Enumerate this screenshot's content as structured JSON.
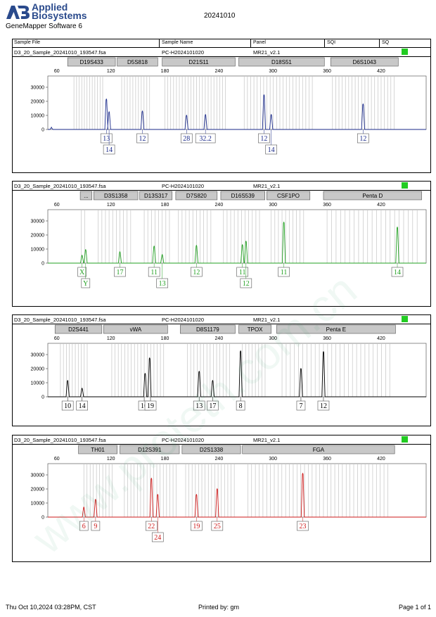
{
  "header": {
    "brand_line1": "Applied",
    "brand_line2": "Biosystems",
    "software": "GeneMapper Software 6",
    "date": "20241010"
  },
  "columns": {
    "sample_file": "Sample File",
    "sample_name": "Sample Name",
    "panel": "Panel",
    "sqi": "SQI",
    "sq": "SQ"
  },
  "footer": {
    "printed_at": "Thu Oct 10,2024 03:28PM, CST",
    "printed_by": "Printed by: gm",
    "page": "Page 1 of 1"
  },
  "watermark": "www.proteth.com.cn",
  "chart_data": [
    {
      "type": "line",
      "sample_file": "D3_20_Sample_20241010_193547.fsa",
      "sample_name": "PC-H2024101020",
      "panel_name": "MR21_v2.1",
      "color": "#1a2a8a",
      "xticks": [
        60,
        120,
        180,
        240,
        300,
        360,
        420
      ],
      "yticks": [
        0,
        10000,
        20000,
        30000
      ],
      "xlim": [
        50,
        470
      ],
      "ylim": [
        0,
        38000
      ],
      "markers": [
        {
          "name": "D19S433",
          "range": [
            72,
            125
          ]
        },
        {
          "name": "D5S818",
          "range": [
            127,
            172
          ]
        },
        {
          "name": "D21S11",
          "range": [
            177,
            258
          ]
        },
        {
          "name": "D18S51",
          "range": [
            262,
            357
          ]
        },
        {
          "name": "D6S1043",
          "range": [
            364,
            439
          ]
        }
      ],
      "bins": [
        {
          "range": [
            79,
            111
          ],
          "step": 2.9
        },
        {
          "range": [
            132,
            166
          ],
          "step": 3.1
        },
        {
          "range": [
            180,
            250
          ],
          "step": 3.2
        },
        {
          "range": [
            268,
            345
          ],
          "step": 3.6
        },
        {
          "range": [
            366,
            435
          ],
          "step": 3.6
        }
      ],
      "peaks": [
        {
          "x": 54,
          "y": 1500
        },
        {
          "x": 115,
          "y": 21500
        },
        {
          "x": 118,
          "y": 12500
        },
        {
          "x": 155,
          "y": 13000
        },
        {
          "x": 204,
          "y": 10000
        },
        {
          "x": 225,
          "y": 10500
        },
        {
          "x": 290,
          "y": 24500
        },
        {
          "x": 298,
          "y": 10500
        },
        {
          "x": 400,
          "y": 18000
        }
      ],
      "alleles": [
        {
          "label": "13",
          "x": 115,
          "row": 1
        },
        {
          "label": "14",
          "x": 118,
          "row": 2
        },
        {
          "label": "12",
          "x": 155,
          "row": 1
        },
        {
          "label": "28",
          "x": 204,
          "row": 1
        },
        {
          "label": "32.2",
          "x": 225,
          "row": 1
        },
        {
          "label": "12",
          "x": 290,
          "row": 1
        },
        {
          "label": "14",
          "x": 298,
          "row": 2
        },
        {
          "label": "12",
          "x": 400,
          "row": 1
        }
      ]
    },
    {
      "type": "line",
      "sample_file": "D3_20_Sample_20241010_193547.fsa",
      "sample_name": "PC-H2024101020",
      "panel_name": "MR21_v2.1",
      "color": "#22a022",
      "xticks": [
        60,
        120,
        180,
        240,
        300,
        360,
        420
      ],
      "yticks": [
        0,
        10000,
        20000,
        30000
      ],
      "xlim": [
        50,
        470
      ],
      "ylim": [
        0,
        38000
      ],
      "markers": [
        {
          "name": "...",
          "range": [
            86,
            99
          ]
        },
        {
          "name": "D3S1358",
          "range": [
            101,
            150
          ]
        },
        {
          "name": "D13S317",
          "range": [
            152,
            188
          ]
        },
        {
          "name": "D7S820",
          "range": [
            192,
            238
          ]
        },
        {
          "name": "D16S539",
          "range": [
            242,
            291
          ]
        },
        {
          "name": "CSF1PO",
          "range": [
            293,
            341
          ]
        },
        {
          "name": "Penta D",
          "range": [
            356,
            465
          ]
        }
      ],
      "bins": [
        {
          "range": [
            87,
            93
          ],
          "step": 4
        },
        {
          "range": [
            106,
            145
          ],
          "step": 4
        },
        {
          "range": [
            157,
            185
          ],
          "step": 4
        },
        {
          "range": [
            195,
            233
          ],
          "step": 4
        },
        {
          "range": [
            245,
            288
          ],
          "step": 4
        },
        {
          "range": [
            298,
            337
          ],
          "step": 4
        },
        {
          "range": [
            360,
            460
          ],
          "step": 5
        }
      ],
      "peaks": [
        {
          "x": 88,
          "y": 5500
        },
        {
          "x": 92,
          "y": 9500
        },
        {
          "x": 130,
          "y": 8000
        },
        {
          "x": 168,
          "y": 12000
        },
        {
          "x": 177,
          "y": 6000
        },
        {
          "x": 215,
          "y": 12500
        },
        {
          "x": 266,
          "y": 13000
        },
        {
          "x": 270,
          "y": 15500
        },
        {
          "x": 312,
          "y": 29000
        },
        {
          "x": 438,
          "y": 25500
        }
      ],
      "alleles": [
        {
          "label": "X",
          "x": 88,
          "row": 1
        },
        {
          "label": "Y",
          "x": 92,
          "row": 2
        },
        {
          "label": "17",
          "x": 130,
          "row": 1
        },
        {
          "label": "11",
          "x": 168,
          "row": 1
        },
        {
          "label": "13",
          "x": 177,
          "row": 2
        },
        {
          "label": "12",
          "x": 215,
          "row": 1
        },
        {
          "label": "11",
          "x": 266,
          "row": 1
        },
        {
          "label": "12",
          "x": 270,
          "row": 2
        },
        {
          "label": "11",
          "x": 312,
          "row": 1
        },
        {
          "label": "14",
          "x": 438,
          "row": 1
        }
      ]
    },
    {
      "type": "line",
      "sample_file": "D3_20_Sample_20241010_193547.fsa",
      "sample_name": "PC-H2024101020",
      "panel_name": "MR21_v2.1",
      "color": "#000000",
      "xticks": [
        60,
        120,
        180,
        240,
        300,
        360,
        420
      ],
      "yticks": [
        0,
        10000,
        20000,
        30000
      ],
      "xlim": [
        50,
        470
      ],
      "ylim": [
        0,
        38000
      ],
      "markers": [
        {
          "name": "D2S441",
          "range": [
            58,
            110
          ]
        },
        {
          "name": "vWA",
          "range": [
            112,
            183
          ]
        },
        {
          "name": "D8S1179",
          "range": [
            197,
            258
          ]
        },
        {
          "name": "TPOX",
          "range": [
            262,
            298
          ]
        },
        {
          "name": "Penta E",
          "range": [
            304,
            436
          ]
        }
      ],
      "bins": [
        {
          "range": [
            64,
            96
          ],
          "step": 3.3
        },
        {
          "range": [
            121,
            179
          ],
          "step": 3.6
        },
        {
          "range": [
            205,
            252
          ],
          "step": 3.6
        },
        {
          "range": [
            266,
            292
          ],
          "step": 3.6
        },
        {
          "range": [
            310,
            432
          ],
          "step": 4.6
        }
      ],
      "peaks": [
        {
          "x": 72,
          "y": 11500
        },
        {
          "x": 88,
          "y": 6000
        },
        {
          "x": 158,
          "y": 16500
        },
        {
          "x": 163,
          "y": 27500
        },
        {
          "x": 218,
          "y": 18000
        },
        {
          "x": 233,
          "y": 11500
        },
        {
          "x": 264,
          "y": 32500
        },
        {
          "x": 331,
          "y": 20000
        },
        {
          "x": 356,
          "y": 32000
        }
      ],
      "alleles": [
        {
          "label": "10",
          "x": 72,
          "row": 1
        },
        {
          "label": "14",
          "x": 88,
          "row": 1
        },
        {
          "label": "16",
          "x": 157,
          "row": 1
        },
        {
          "label": "19",
          "x": 164,
          "row": 1
        },
        {
          "label": "13",
          "x": 218,
          "row": 1
        },
        {
          "label": "17",
          "x": 233,
          "row": 1
        },
        {
          "label": "8",
          "x": 264,
          "row": 1
        },
        {
          "label": "7",
          "x": 331,
          "row": 1
        },
        {
          "label": "12",
          "x": 356,
          "row": 1
        }
      ]
    },
    {
      "type": "line",
      "sample_file": "D3_20_Sample_20241010_193547.fsa",
      "sample_name": "PC-H2024101020",
      "panel_name": "MR21_v2.1",
      "color": "#cc1a1a",
      "xticks": [
        60,
        120,
        180,
        240,
        300,
        360,
        420
      ],
      "yticks": [
        0,
        10000,
        20000,
        30000
      ],
      "xlim": [
        50,
        470
      ],
      "ylim": [
        0,
        38000
      ],
      "markers": [
        {
          "name": "TH01",
          "range": [
            84,
            127
          ]
        },
        {
          "name": "D12S391",
          "range": [
            130,
            196
          ]
        },
        {
          "name": "D2S1338",
          "range": [
            199,
            264
          ]
        },
        {
          "name": "FGA",
          "range": [
            266,
            435
          ]
        }
      ],
      "bins": [
        {
          "range": [
            90,
            122
          ],
          "step": 3.5
        },
        {
          "range": [
            135,
            193
          ],
          "step": 3.6
        },
        {
          "range": [
            203,
            260
          ],
          "step": 3.6
        },
        {
          "range": [
            272,
            430
          ],
          "step": 4.2
        }
      ],
      "peaks": [
        {
          "x": 90,
          "y": 7000
        },
        {
          "x": 103,
          "y": 12500
        },
        {
          "x": 165,
          "y": 27500
        },
        {
          "x": 172,
          "y": 16000
        },
        {
          "x": 215,
          "y": 16000
        },
        {
          "x": 238,
          "y": 20000
        },
        {
          "x": 333,
          "y": 31000
        }
      ],
      "alleles": [
        {
          "label": "6",
          "x": 90,
          "row": 1
        },
        {
          "label": "9",
          "x": 103,
          "row": 1
        },
        {
          "label": "22",
          "x": 165,
          "row": 1
        },
        {
          "label": "24",
          "x": 172,
          "row": 2
        },
        {
          "label": "19",
          "x": 215,
          "row": 1
        },
        {
          "label": "25",
          "x": 238,
          "row": 1
        },
        {
          "label": "23",
          "x": 333,
          "row": 1
        }
      ]
    }
  ]
}
